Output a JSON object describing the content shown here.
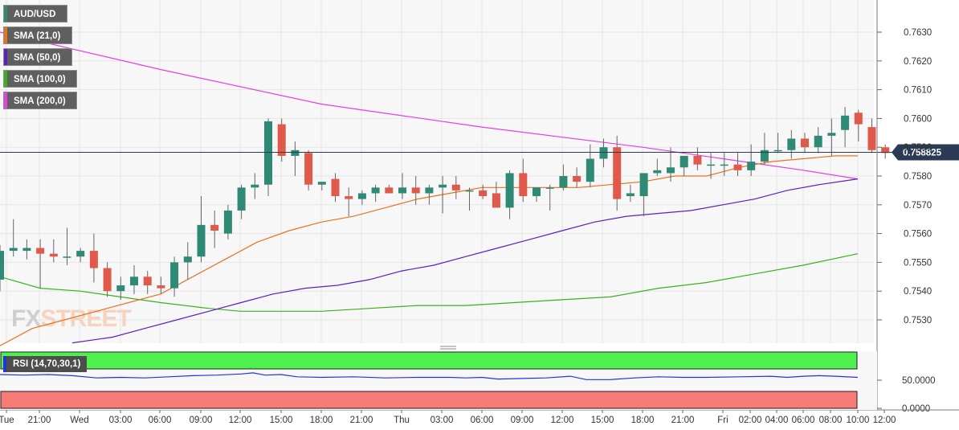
{
  "symbol": "AUD/USD",
  "watermark": {
    "left": "FX",
    "right": "STREET"
  },
  "indicators": [
    {
      "label": "SMA (21,0)",
      "color": "#e8731e"
    },
    {
      "label": "SMA (50,0)",
      "color": "#5b1fc0"
    },
    {
      "label": "SMA (100,0)",
      "color": "#3cb01c"
    },
    {
      "label": "SMA (200,0)",
      "color": "#e43fe4"
    }
  ],
  "colors": {
    "up": "#2e8a75",
    "down": "#e1594a",
    "wick": "#666666",
    "price_line": "#2b3a55",
    "rsi_line": "#2233dd",
    "rsi_upper_zone": "#4ef04e",
    "rsi_lower_zone": "#f77b76"
  },
  "chart_data": [
    {
      "type": "candlestick",
      "symbol": "AUD/USD",
      "ylim": [
        0.7522,
        0.7642
      ],
      "yticks": [
        "0.7530",
        "0.7540",
        "0.7550",
        "0.7560",
        "0.7570",
        "0.7580",
        "0.7590",
        "0.7600",
        "0.7610",
        "0.7620",
        "0.7630"
      ],
      "current_price": "0.758825",
      "xticks": [
        "Tue",
        "21:00",
        "Wed",
        "03:00",
        "06:00",
        "09:00",
        "12:00",
        "15:00",
        "18:00",
        "21:00",
        "Thu",
        "03:00",
        "06:00",
        "09:00",
        "12:00",
        "15:00",
        "18:00",
        "21:00",
        "Fri",
        "02:00",
        "04:00",
        "06:00",
        "08:00",
        "10:00",
        "12:00"
      ],
      "candles": [
        {
          "o": 0.7544,
          "h": 0.7556,
          "l": 0.754,
          "c": 0.7554
        },
        {
          "o": 0.7554,
          "h": 0.7565,
          "l": 0.7552,
          "c": 0.7555
        },
        {
          "o": 0.7554,
          "h": 0.7558,
          "l": 0.7551,
          "c": 0.7555
        },
        {
          "o": 0.7555,
          "h": 0.7558,
          "l": 0.7541,
          "c": 0.7553
        },
        {
          "o": 0.7553,
          "h": 0.7558,
          "l": 0.755,
          "c": 0.7552
        },
        {
          "o": 0.7552,
          "h": 0.7562,
          "l": 0.7549,
          "c": 0.7552
        },
        {
          "o": 0.7552,
          "h": 0.7555,
          "l": 0.755,
          "c": 0.7554
        },
        {
          "o": 0.7554,
          "h": 0.756,
          "l": 0.7543,
          "c": 0.7548
        },
        {
          "o": 0.7548,
          "h": 0.755,
          "l": 0.7538,
          "c": 0.754
        },
        {
          "o": 0.754,
          "h": 0.7545,
          "l": 0.7537,
          "c": 0.7542
        },
        {
          "o": 0.7542,
          "h": 0.7549,
          "l": 0.7539,
          "c": 0.7545
        },
        {
          "o": 0.7545,
          "h": 0.7547,
          "l": 0.7539,
          "c": 0.7542
        },
        {
          "o": 0.7542,
          "h": 0.7545,
          "l": 0.7539,
          "c": 0.7541
        },
        {
          "o": 0.7541,
          "h": 0.7552,
          "l": 0.7538,
          "c": 0.755
        },
        {
          "o": 0.755,
          "h": 0.7557,
          "l": 0.7544,
          "c": 0.7552
        },
        {
          "o": 0.7552,
          "h": 0.7573,
          "l": 0.755,
          "c": 0.7563
        },
        {
          "o": 0.7563,
          "h": 0.7568,
          "l": 0.7555,
          "c": 0.7561
        },
        {
          "o": 0.756,
          "h": 0.757,
          "l": 0.7558,
          "c": 0.7568
        },
        {
          "o": 0.7568,
          "h": 0.7577,
          "l": 0.7565,
          "c": 0.7576
        },
        {
          "o": 0.7576,
          "h": 0.7581,
          "l": 0.7572,
          "c": 0.7577
        },
        {
          "o": 0.7577,
          "h": 0.76,
          "l": 0.7573,
          "c": 0.7599
        },
        {
          "o": 0.7598,
          "h": 0.76,
          "l": 0.7585,
          "c": 0.7587
        },
        {
          "o": 0.7587,
          "h": 0.7592,
          "l": 0.758,
          "c": 0.7589
        },
        {
          "o": 0.7588,
          "h": 0.7589,
          "l": 0.7575,
          "c": 0.7577
        },
        {
          "o": 0.7577,
          "h": 0.7578,
          "l": 0.7575,
          "c": 0.7578
        },
        {
          "o": 0.7579,
          "h": 0.7581,
          "l": 0.7571,
          "c": 0.7573
        },
        {
          "o": 0.7573,
          "h": 0.7576,
          "l": 0.7566,
          "c": 0.7572
        },
        {
          "o": 0.7572,
          "h": 0.7575,
          "l": 0.757,
          "c": 0.7574
        },
        {
          "o": 0.7574,
          "h": 0.7577,
          "l": 0.7571,
          "c": 0.7576
        },
        {
          "o": 0.7576,
          "h": 0.7577,
          "l": 0.7574,
          "c": 0.7574
        },
        {
          "o": 0.7574,
          "h": 0.7581,
          "l": 0.7572,
          "c": 0.7576
        },
        {
          "o": 0.7576,
          "h": 0.758,
          "l": 0.757,
          "c": 0.7574
        },
        {
          "o": 0.7574,
          "h": 0.7577,
          "l": 0.757,
          "c": 0.7576
        },
        {
          "o": 0.7576,
          "h": 0.758,
          "l": 0.7567,
          "c": 0.7577
        },
        {
          "o": 0.7577,
          "h": 0.758,
          "l": 0.7572,
          "c": 0.7575
        },
        {
          "o": 0.7575,
          "h": 0.7576,
          "l": 0.7568,
          "c": 0.7575
        },
        {
          "o": 0.7575,
          "h": 0.7577,
          "l": 0.7572,
          "c": 0.7573
        },
        {
          "o": 0.7574,
          "h": 0.7578,
          "l": 0.7569,
          "c": 0.7569
        },
        {
          "o": 0.7569,
          "h": 0.7582,
          "l": 0.7565,
          "c": 0.7581
        },
        {
          "o": 0.7581,
          "h": 0.7586,
          "l": 0.7571,
          "c": 0.7573
        },
        {
          "o": 0.7573,
          "h": 0.7576,
          "l": 0.7571,
          "c": 0.7576
        },
        {
          "o": 0.7576,
          "h": 0.7577,
          "l": 0.7568,
          "c": 0.7576
        },
        {
          "o": 0.7576,
          "h": 0.7584,
          "l": 0.7575,
          "c": 0.758
        },
        {
          "o": 0.758,
          "h": 0.7583,
          "l": 0.7576,
          "c": 0.7578
        },
        {
          "o": 0.7578,
          "h": 0.7591,
          "l": 0.7576,
          "c": 0.7586
        },
        {
          "o": 0.7586,
          "h": 0.7593,
          "l": 0.7583,
          "c": 0.759
        },
        {
          "o": 0.759,
          "h": 0.7594,
          "l": 0.7568,
          "c": 0.7572
        },
        {
          "o": 0.7573,
          "h": 0.7577,
          "l": 0.7571,
          "c": 0.7574
        },
        {
          "o": 0.7573,
          "h": 0.7581,
          "l": 0.7566,
          "c": 0.7581
        },
        {
          "o": 0.7581,
          "h": 0.7586,
          "l": 0.758,
          "c": 0.7582
        },
        {
          "o": 0.7581,
          "h": 0.759,
          "l": 0.7578,
          "c": 0.7583
        },
        {
          "o": 0.7583,
          "h": 0.7587,
          "l": 0.758,
          "c": 0.7587
        },
        {
          "o": 0.7587,
          "h": 0.759,
          "l": 0.7582,
          "c": 0.7584
        },
        {
          "o": 0.7584,
          "h": 0.7588,
          "l": 0.7579,
          "c": 0.7584
        },
        {
          "o": 0.7584,
          "h": 0.7588,
          "l": 0.758,
          "c": 0.7584
        },
        {
          "o": 0.7584,
          "h": 0.7588,
          "l": 0.758,
          "c": 0.7582
        },
        {
          "o": 0.7582,
          "h": 0.7591,
          "l": 0.758,
          "c": 0.7585
        },
        {
          "o": 0.7585,
          "h": 0.7595,
          "l": 0.7584,
          "c": 0.7589
        },
        {
          "o": 0.7589,
          "h": 0.7595,
          "l": 0.7588,
          "c": 0.7589
        },
        {
          "o": 0.7589,
          "h": 0.7596,
          "l": 0.7586,
          "c": 0.7593
        },
        {
          "o": 0.7593,
          "h": 0.7595,
          "l": 0.7588,
          "c": 0.759
        },
        {
          "o": 0.759,
          "h": 0.7597,
          "l": 0.7588,
          "c": 0.7594
        },
        {
          "o": 0.7594,
          "h": 0.76,
          "l": 0.7587,
          "c": 0.7595
        },
        {
          "o": 0.7596,
          "h": 0.7604,
          "l": 0.759,
          "c": 0.7601
        },
        {
          "o": 0.7602,
          "h": 0.7603,
          "l": 0.7592,
          "c": 0.7598
        },
        {
          "o": 0.7597,
          "h": 0.76,
          "l": 0.7588,
          "c": 0.7589
        },
        {
          "o": 0.759,
          "h": 0.7591,
          "l": 0.7586,
          "c": 0.7588
        }
      ],
      "sma21": [
        [
          0,
          0.7521
        ],
        [
          40,
          0.7527
        ],
        [
          80,
          0.753
        ],
        [
          120,
          0.7533
        ],
        [
          160,
          0.7536
        ],
        [
          200,
          0.7539
        ],
        [
          240,
          0.7545
        ],
        [
          280,
          0.7551
        ],
        [
          320,
          0.7557
        ],
        [
          360,
          0.7561
        ],
        [
          400,
          0.7564
        ],
        [
          440,
          0.7566
        ],
        [
          480,
          0.7569
        ],
        [
          520,
          0.7572
        ],
        [
          560,
          0.7574
        ],
        [
          600,
          0.7576
        ],
        [
          640,
          0.7576
        ],
        [
          680,
          0.7576
        ],
        [
          720,
          0.7576
        ],
        [
          760,
          0.7577
        ],
        [
          800,
          0.7578
        ],
        [
          840,
          0.758
        ],
        [
          880,
          0.758
        ],
        [
          920,
          0.7583
        ],
        [
          960,
          0.7585
        ],
        [
          1000,
          0.7586
        ],
        [
          1040,
          0.7587
        ],
        [
          1068,
          0.7587
        ]
      ],
      "sma50": [
        [
          90,
          0.7522
        ],
        [
          140,
          0.7524
        ],
        [
          180,
          0.7527
        ],
        [
          220,
          0.753
        ],
        [
          260,
          0.7533
        ],
        [
          300,
          0.7536
        ],
        [
          340,
          0.7539
        ],
        [
          380,
          0.7541
        ],
        [
          420,
          0.7542
        ],
        [
          460,
          0.7544
        ],
        [
          500,
          0.7547
        ],
        [
          540,
          0.7549
        ],
        [
          580,
          0.7552
        ],
        [
          620,
          0.7555
        ],
        [
          660,
          0.7558
        ],
        [
          700,
          0.7561
        ],
        [
          740,
          0.7564
        ],
        [
          780,
          0.7566
        ],
        [
          820,
          0.7567
        ],
        [
          860,
          0.7568
        ],
        [
          900,
          0.757
        ],
        [
          940,
          0.7572
        ],
        [
          980,
          0.7575
        ],
        [
          1020,
          0.7577
        ],
        [
          1068,
          0.7579
        ]
      ],
      "sma100": [
        [
          0,
          0.7545
        ],
        [
          50,
          0.7541
        ],
        [
          100,
          0.754
        ],
        [
          150,
          0.7538
        ],
        [
          200,
          0.7536
        ],
        [
          260,
          0.7534
        ],
        [
          300,
          0.7533
        ],
        [
          350,
          0.7533
        ],
        [
          400,
          0.7533
        ],
        [
          460,
          0.7534
        ],
        [
          520,
          0.7535
        ],
        [
          580,
          0.7535
        ],
        [
          640,
          0.7536
        ],
        [
          700,
          0.7537
        ],
        [
          760,
          0.7538
        ],
        [
          820,
          0.7541
        ],
        [
          880,
          0.7543
        ],
        [
          940,
          0.7546
        ],
        [
          1000,
          0.7549
        ],
        [
          1068,
          0.7553
        ]
      ],
      "sma200": [
        [
          0,
          0.763
        ],
        [
          200,
          0.7617
        ],
        [
          400,
          0.7605
        ],
        [
          600,
          0.7597
        ],
        [
          800,
          0.759
        ],
        [
          900,
          0.7586
        ],
        [
          1000,
          0.7582
        ],
        [
          1068,
          0.7579
        ]
      ],
      "rsi": {
        "label": "RSI (14,70,30,1)",
        "ylim": [
          0,
          100
        ],
        "yticks": [
          "50.0000",
          "0.0000"
        ],
        "values": [
          [
            0,
            60
          ],
          [
            30,
            59
          ],
          [
            60,
            60
          ],
          [
            90,
            58
          ],
          [
            120,
            54
          ],
          [
            150,
            55
          ],
          [
            180,
            54
          ],
          [
            210,
            56
          ],
          [
            240,
            58
          ],
          [
            270,
            59
          ],
          [
            300,
            61
          ],
          [
            315,
            63
          ],
          [
            330,
            59
          ],
          [
            350,
            60
          ],
          [
            370,
            56
          ],
          [
            400,
            55
          ],
          [
            440,
            56
          ],
          [
            480,
            54
          ],
          [
            520,
            55
          ],
          [
            560,
            55
          ],
          [
            580,
            54
          ],
          [
            600,
            55
          ],
          [
            620,
            52
          ],
          [
            650,
            53
          ],
          [
            680,
            54
          ],
          [
            710,
            57
          ],
          [
            730,
            51
          ],
          [
            760,
            51
          ],
          [
            790,
            54
          ],
          [
            820,
            56
          ],
          [
            850,
            55
          ],
          [
            880,
            55
          ],
          [
            920,
            56
          ],
          [
            960,
            57
          ],
          [
            980,
            55
          ],
          [
            1000,
            57
          ],
          [
            1020,
            58
          ],
          [
            1040,
            57
          ],
          [
            1068,
            55
          ]
        ]
      }
    }
  ]
}
